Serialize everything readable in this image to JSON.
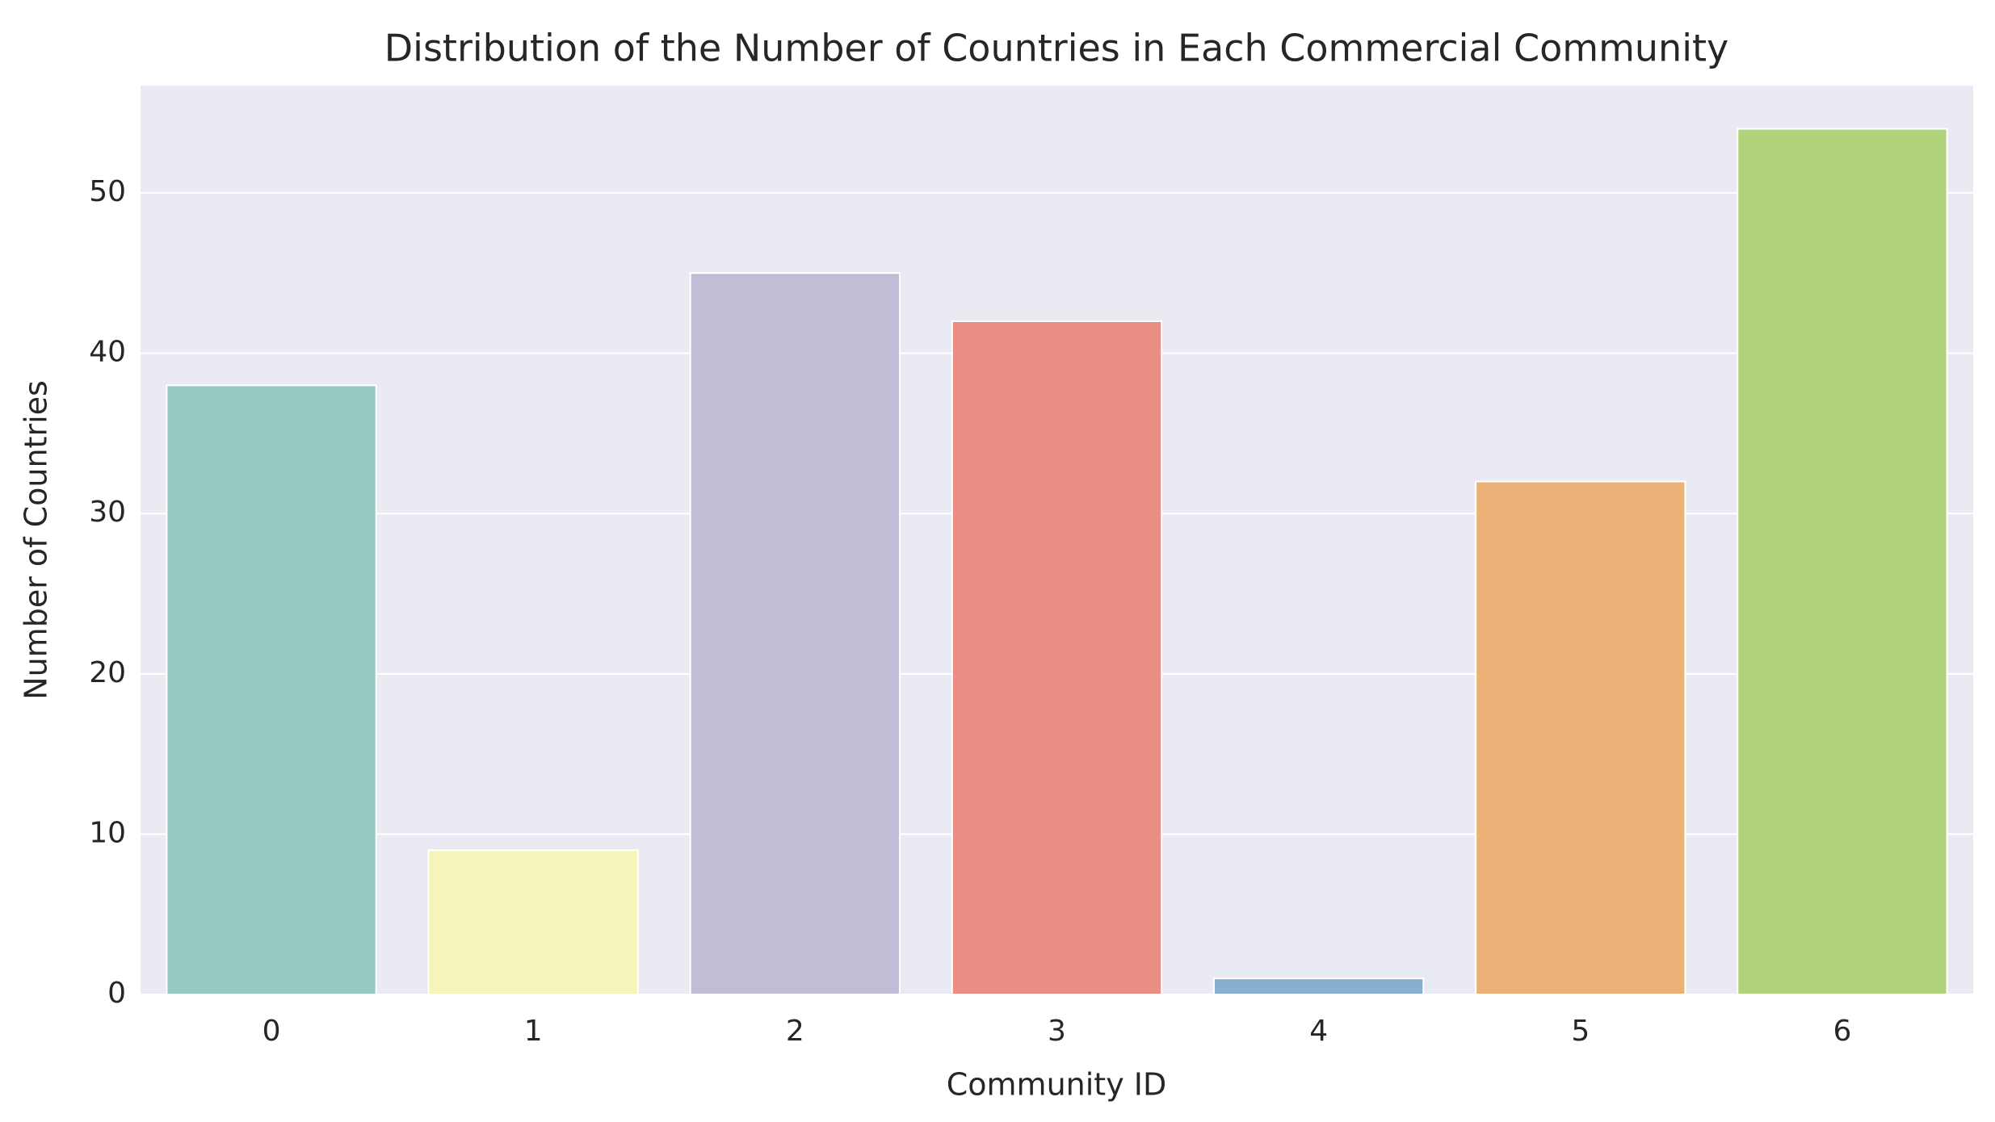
{
  "chart_data": {
    "type": "bar",
    "title": "Distribution of the Number of Countries in Each Commercial Community",
    "xlabel": "Community ID",
    "ylabel": "Number of Countries",
    "categories": [
      "0",
      "1",
      "2",
      "3",
      "4",
      "5",
      "6"
    ],
    "values": [
      38,
      9,
      45,
      42,
      1,
      32,
      54
    ],
    "colors": [
      "#98c9c1",
      "#f6f5b9",
      "#c1bdd6",
      "#ea8d82",
      "#88afcf",
      "#eab276",
      "#b0d27a"
    ],
    "ylim": [
      0,
      56.7
    ],
    "yticks": [
      0,
      10,
      20,
      30,
      40,
      50
    ],
    "grid": true
  }
}
